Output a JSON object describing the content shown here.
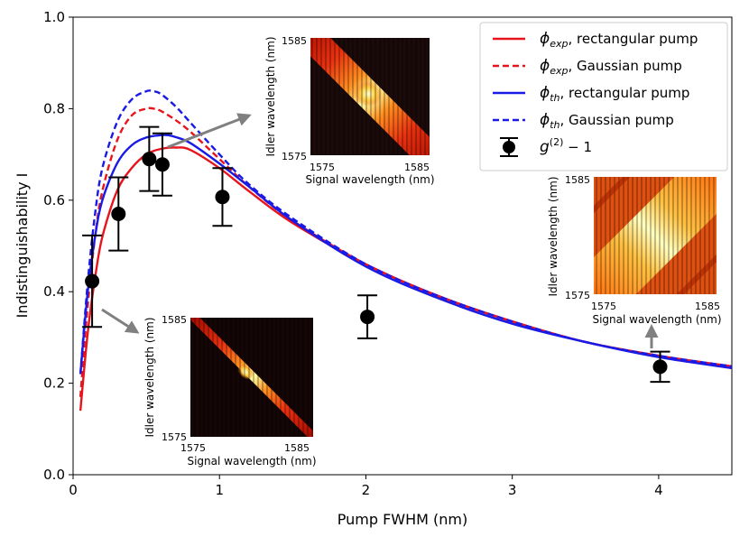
{
  "chart_data": {
    "type": "line",
    "xlabel": "Pump FWHM (nm)",
    "ylabel": "Indistinguishability I",
    "xlim": [
      0,
      4.5
    ],
    "ylim": [
      0,
      1.0
    ],
    "x_ticks": [
      "0",
      "1",
      "2",
      "3",
      "4"
    ],
    "y_ticks": [
      "0.0",
      "0.2",
      "0.4",
      "0.6",
      "0.8",
      "1.0"
    ],
    "series": [
      {
        "name": "ϕexp, rectangular pump",
        "legend_main": "ϕ",
        "legend_sub": "exp",
        "legend_rest": ", rectangular pump",
        "color": "#e8141c",
        "dash": "solid",
        "x": [
          0.05,
          0.1,
          0.15,
          0.2,
          0.3,
          0.4,
          0.5,
          0.6,
          0.7,
          0.8,
          1.0,
          1.2,
          1.5,
          2.0,
          2.5,
          3.0,
          3.5,
          4.0,
          4.5
        ],
        "y": [
          0.14,
          0.31,
          0.43,
          0.52,
          0.62,
          0.67,
          0.7,
          0.712,
          0.715,
          0.71,
          0.67,
          0.62,
          0.55,
          0.46,
          0.39,
          0.335,
          0.29,
          0.26,
          0.233
        ]
      },
      {
        "name": "ϕexp, Gaussian pump",
        "legend_main": "ϕ",
        "legend_sub": "exp",
        "legend_rest": ", Gaussian pump",
        "color": "#e8141c",
        "dash": "dashed",
        "x": [
          0.05,
          0.1,
          0.15,
          0.2,
          0.3,
          0.4,
          0.5,
          0.55,
          0.6,
          0.7,
          0.8,
          1.0,
          1.2,
          1.5,
          2.0,
          2.5,
          3.0,
          3.5,
          4.0,
          4.5
        ],
        "y": [
          0.17,
          0.37,
          0.52,
          0.62,
          0.73,
          0.785,
          0.8,
          0.8,
          0.795,
          0.775,
          0.75,
          0.69,
          0.63,
          0.555,
          0.46,
          0.39,
          0.335,
          0.29,
          0.26,
          0.237
        ]
      },
      {
        "name": "ϕth, rectangular pump",
        "legend_main": "ϕ",
        "legend_sub": "th",
        "legend_rest": ", rectangular pump",
        "color": "#1a1ae6",
        "dash": "solid",
        "x": [
          0.05,
          0.1,
          0.15,
          0.2,
          0.3,
          0.4,
          0.5,
          0.6,
          0.65,
          0.7,
          0.8,
          1.0,
          1.2,
          1.5,
          2.0,
          2.5,
          3.0,
          3.5,
          4.0,
          4.5
        ],
        "y": [
          0.22,
          0.4,
          0.52,
          0.6,
          0.68,
          0.72,
          0.737,
          0.742,
          0.742,
          0.738,
          0.725,
          0.68,
          0.63,
          0.555,
          0.455,
          0.385,
          0.33,
          0.29,
          0.257,
          0.233
        ]
      },
      {
        "name": "ϕth, Gaussian pump",
        "legend_main": "ϕ",
        "legend_sub": "th",
        "legend_rest": ", Gaussian pump",
        "color": "#1a1ae6",
        "dash": "dashed",
        "x": [
          0.05,
          0.1,
          0.15,
          0.2,
          0.3,
          0.4,
          0.5,
          0.55,
          0.6,
          0.7,
          0.8,
          1.0,
          1.2,
          1.5,
          2.0,
          2.5,
          3.0,
          3.5,
          4.0,
          4.5
        ],
        "y": [
          0.22,
          0.42,
          0.57,
          0.67,
          0.77,
          0.82,
          0.838,
          0.838,
          0.832,
          0.805,
          0.77,
          0.7,
          0.635,
          0.56,
          0.46,
          0.39,
          0.335,
          0.29,
          0.26,
          0.237
        ]
      }
    ],
    "points": {
      "name": "g(2) − 1",
      "legend_main": "g",
      "legend_sup": "(2)",
      "legend_rest": " − 1",
      "color": "#000000",
      "x": [
        0.13,
        0.31,
        0.52,
        0.61,
        1.02,
        2.01,
        4.01
      ],
      "y": [
        0.423,
        0.57,
        0.69,
        0.678,
        0.607,
        0.345,
        0.236
      ],
      "err": [
        0.1,
        0.08,
        0.07,
        0.068,
        0.063,
        0.047,
        0.033
      ]
    },
    "insets": [
      {
        "name": "inset-top",
        "xlabel": "Signal wavelength (nm)",
        "ylabel": "Idler wavelength (nm)",
        "x_min_label": "1575",
        "x_max_label": "1585",
        "y_min_label": "1575",
        "y_max_label": "1585",
        "points_to_x": 0.61,
        "points_to_y": 0.678
      },
      {
        "name": "inset-bottom",
        "xlabel": "Signal wavelength (nm)",
        "ylabel": "Idler wavelength (nm)",
        "x_min_label": "1575",
        "x_max_label": "1585",
        "y_min_label": "1575",
        "y_max_label": "1585",
        "points_to_x": 0.13,
        "points_to_y": 0.423
      },
      {
        "name": "inset-right",
        "xlabel": "Signal wavelength (nm)",
        "ylabel": "Idler wavelength (nm)",
        "x_min_label": "1575",
        "x_max_label": "1585",
        "y_min_label": "1575",
        "y_max_label": "1585",
        "points_to_x": 4.01,
        "points_to_y": 0.236
      }
    ]
  }
}
